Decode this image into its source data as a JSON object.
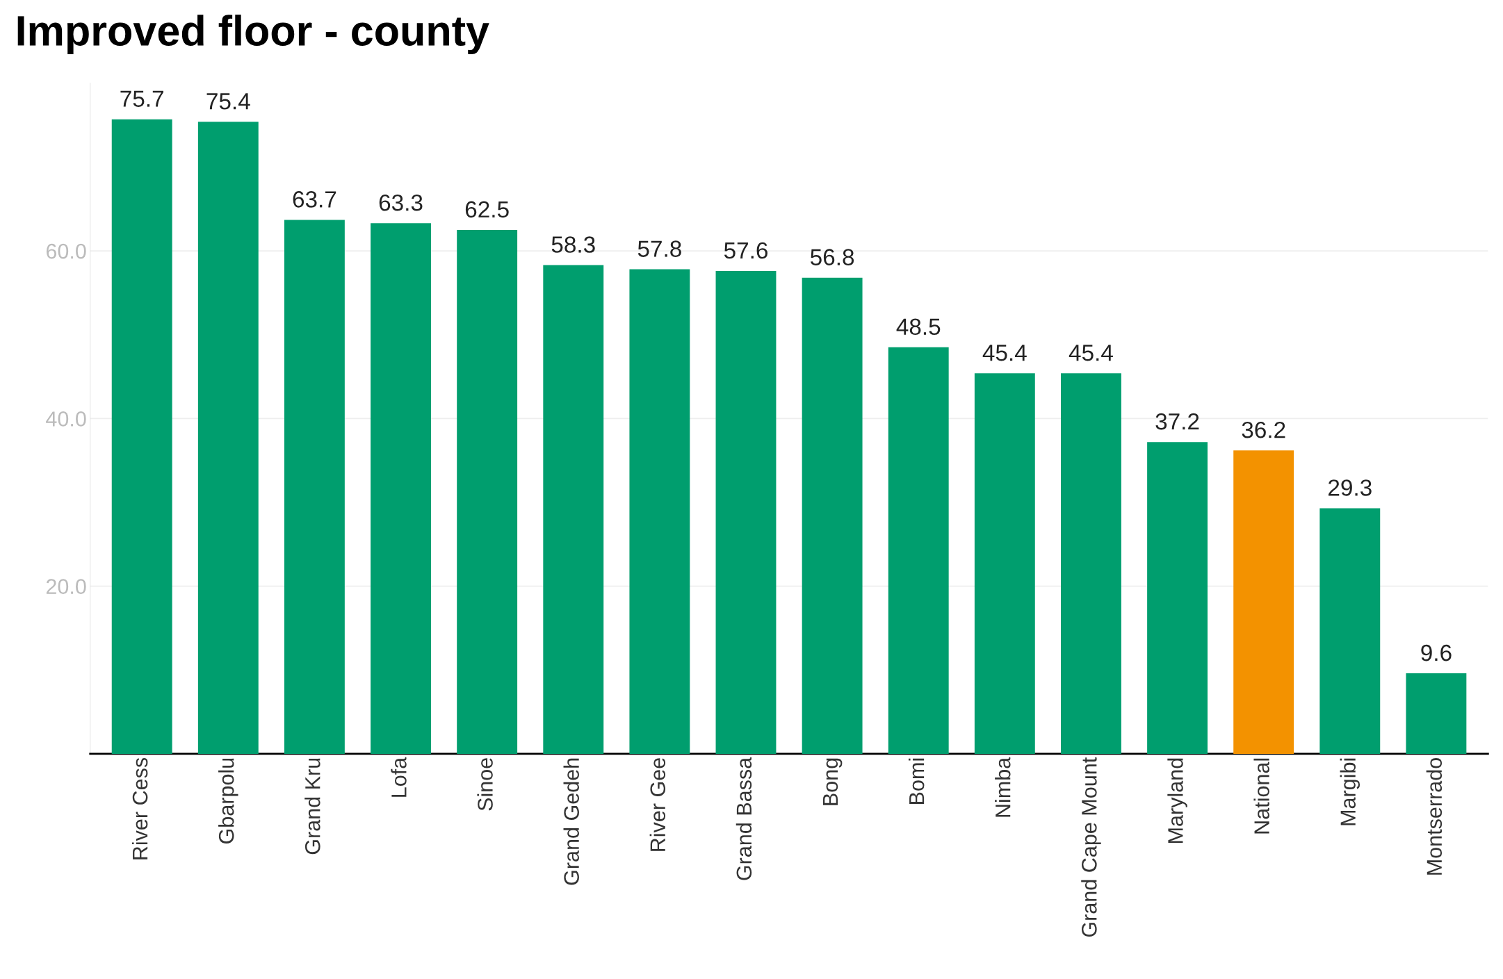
{
  "chart_data": {
    "type": "bar",
    "title": "Improved floor - county",
    "categories": [
      "River Cess",
      "Gbarpolu",
      "Grand Kru",
      "Lofa",
      "Sinoe",
      "Grand Gedeh",
      "River Gee",
      "Grand Bassa",
      "Bong",
      "Bomi",
      "Nimba",
      "Grand Cape Mount",
      "Maryland",
      "National",
      "Margibi",
      "Montserrado"
    ],
    "values": [
      75.7,
      75.4,
      63.7,
      63.3,
      62.5,
      58.3,
      57.8,
      57.6,
      56.8,
      48.5,
      45.4,
      45.4,
      37.2,
      36.2,
      29.3,
      9.6
    ],
    "colors": [
      "#009e6e",
      "#009e6e",
      "#009e6e",
      "#009e6e",
      "#009e6e",
      "#009e6e",
      "#009e6e",
      "#009e6e",
      "#009e6e",
      "#009e6e",
      "#009e6e",
      "#009e6e",
      "#009e6e",
      "#f39200",
      "#009e6e",
      "#009e6e"
    ],
    "ylim": [
      0,
      80
    ],
    "yticks": [
      {
        "value": 20,
        "label": "20.0"
      },
      {
        "value": 40,
        "label": "40.0"
      },
      {
        "value": 60,
        "label": "60.0"
      }
    ],
    "grid": "y",
    "data_labels": true,
    "legend": false
  }
}
